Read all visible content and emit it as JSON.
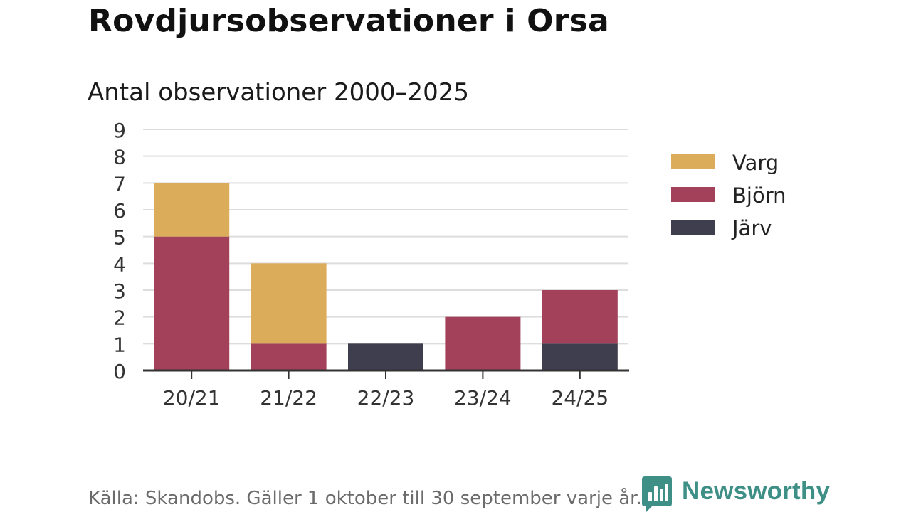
{
  "title": "Rovdjursobservationer i Orsa",
  "subtitle": "Antal observationer 2000–2025",
  "source": "Källa: Skandobs. Gäller 1 oktober till 30 september varje år.",
  "brand": {
    "name": "Newsworthy",
    "color": "#3e8f86",
    "icon": "newsworthy-logo-icon"
  },
  "chart_data": {
    "type": "bar",
    "stacked": true,
    "categories": [
      "20/21",
      "21/22",
      "22/23",
      "23/24",
      "24/25"
    ],
    "series": [
      {
        "name": "Järv",
        "color": "#3e3e4e",
        "values": [
          0,
          0,
          1,
          0,
          1
        ]
      },
      {
        "name": "Björn",
        "color": "#a3415b",
        "values": [
          5,
          1,
          0,
          2,
          2
        ]
      },
      {
        "name": "Varg",
        "color": "#dbac59",
        "values": [
          2,
          3,
          0,
          0,
          0
        ]
      }
    ],
    "legend_order": [
      "Varg",
      "Björn",
      "Järv"
    ],
    "ylim": [
      0,
      9
    ],
    "yticks": [
      0,
      1,
      2,
      3,
      4,
      5,
      6,
      7,
      8,
      9
    ],
    "grid": true,
    "legend": "right",
    "xlabel": "",
    "ylabel": ""
  }
}
